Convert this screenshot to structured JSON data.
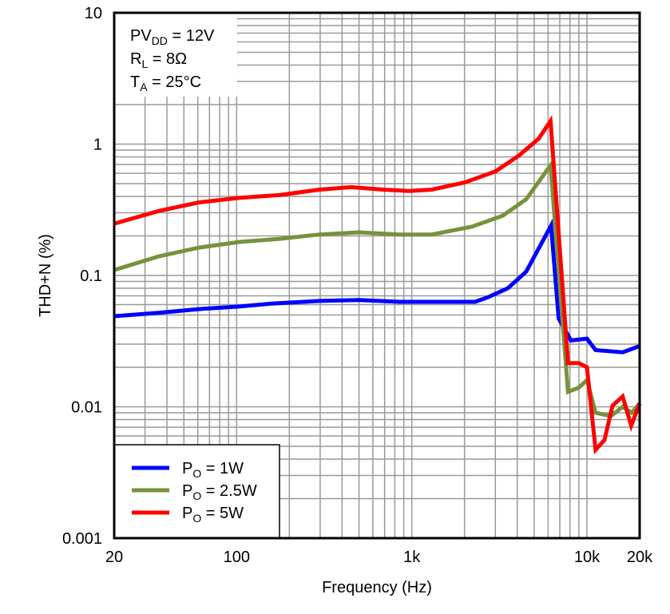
{
  "chart_data": {
    "type": "line",
    "title": "",
    "xlabel": "Frequency (Hz)",
    "ylabel": "THD+N (%)",
    "xscale": "log",
    "yscale": "log",
    "xlim": [
      20,
      20000
    ],
    "ylim": [
      0.001,
      10
    ],
    "grid": true,
    "x_ticks": [
      {
        "v": 20,
        "label": "20"
      },
      {
        "v": 100,
        "label": "100"
      },
      {
        "v": 1000,
        "label": "1k"
      },
      {
        "v": 10000,
        "label": "10k"
      },
      {
        "v": 20000,
        "label": "20k"
      }
    ],
    "y_ticks": [
      {
        "v": 10,
        "label": "10"
      },
      {
        "v": 1,
        "label": "1"
      },
      {
        "v": 0.1,
        "label": "0.1"
      },
      {
        "v": 0.01,
        "label": "0.01"
      },
      {
        "v": 0.001,
        "label": "0.001"
      }
    ],
    "annotation": [
      {
        "main": "PV",
        "sub": "DD",
        "rest": " = 12V"
      },
      {
        "main": "R",
        "sub": "L",
        "rest": " = 8Ω"
      },
      {
        "main": "T",
        "sub": "A",
        "rest": " = 25°C"
      }
    ],
    "legend_position": "bottom-left",
    "series": [
      {
        "name": "P",
        "name_sub": "O",
        "name_rest": " = 1W",
        "color": "#0000FF",
        "x": [
          20,
          36,
          61,
          104,
          158,
          297,
          500,
          850,
          2300,
          2700,
          3540,
          4500,
          6240,
          6900,
          8100,
          10000,
          11200,
          16000,
          20000
        ],
        "y": [
          0.049,
          0.052,
          0.0555,
          0.058,
          0.061,
          0.064,
          0.065,
          0.063,
          0.063,
          0.068,
          0.08,
          0.107,
          0.24,
          0.047,
          0.032,
          0.033,
          0.027,
          0.026,
          0.029
        ]
      },
      {
        "name": "P",
        "name_sub": "O",
        "name_rest": " = 2.5W",
        "color": "#76923C",
        "x": [
          20,
          36,
          61,
          104,
          177,
          297,
          500,
          850,
          1300,
          2200,
          3300,
          4500,
          6200,
          7800,
          9000,
          10000,
          11200,
          13700,
          16000,
          18000,
          20000
        ],
        "y": [
          0.11,
          0.14,
          0.163,
          0.18,
          0.19,
          0.205,
          0.213,
          0.205,
          0.205,
          0.235,
          0.285,
          0.38,
          0.69,
          0.013,
          0.014,
          0.016,
          0.009,
          0.0085,
          0.01,
          0.009,
          0.0106
        ]
      },
      {
        "name": "P",
        "name_sub": "O",
        "name_rest": " = 5W",
        "color": "#FF0000",
        "x": [
          20,
          36,
          61,
          104,
          177,
          297,
          450,
          690,
          960,
          1300,
          2000,
          3000,
          4100,
          5300,
          6200,
          7800,
          9000,
          10000,
          11200,
          12600,
          14000,
          16000,
          17900,
          20000
        ],
        "y": [
          0.248,
          0.31,
          0.36,
          0.39,
          0.41,
          0.45,
          0.47,
          0.45,
          0.44,
          0.45,
          0.51,
          0.62,
          0.82,
          1.1,
          1.5,
          0.0215,
          0.0215,
          0.02,
          0.0047,
          0.0056,
          0.0102,
          0.012,
          0.0072,
          0.0106
        ]
      }
    ]
  }
}
